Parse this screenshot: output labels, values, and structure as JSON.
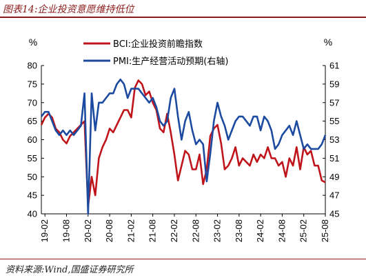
{
  "figure": {
    "title": "图表14:企业投资意愿维持低位",
    "source": "资料来源:Wind,国盛证券研究所"
  },
  "colors": {
    "bci": "#c0141b",
    "pmi": "#1b4aa0",
    "accent": "#8b1a1a"
  },
  "chart_data": {
    "type": "line",
    "left_unit": "%",
    "right_unit": "%",
    "left_axis": {
      "min": 40,
      "max": 80,
      "step": 5,
      "ticks": [
        "40",
        "45",
        "50",
        "55",
        "60",
        "65",
        "70",
        "75",
        "80"
      ]
    },
    "right_axis": {
      "min": 45,
      "max": 61,
      "step": 2,
      "ticks": [
        "45",
        "47",
        "49",
        "51",
        "53",
        "55",
        "57",
        "59",
        "61"
      ]
    },
    "x_ticks": [
      "19-02",
      "19-08",
      "20-02",
      "20-08",
      "21-02",
      "21-08",
      "22-02",
      "22-08",
      "23-02",
      "23-08",
      "24-02",
      "24-08",
      "25-02",
      "25-08"
    ],
    "x_range": [
      "2019-01",
      "2025-08"
    ],
    "grid": false,
    "legend_position": "top-center",
    "series": [
      {
        "name": "BCI:企业投资前瞻指数",
        "axis": "left",
        "color": "#c0141b",
        "points": [
          [
            "2019-01",
            64
          ],
          [
            "2019-02",
            66
          ],
          [
            "2019-03",
            67
          ],
          [
            "2019-04",
            66
          ],
          [
            "2019-05",
            63
          ],
          [
            "2019-06",
            62
          ],
          [
            "2019-07",
            60
          ],
          [
            "2019-08",
            59
          ],
          [
            "2019-09",
            61
          ],
          [
            "2019-10",
            62
          ],
          [
            "2019-11",
            63
          ],
          [
            "2019-12",
            64
          ],
          [
            "2020-01",
            65
          ],
          [
            "2020-02",
            42
          ],
          [
            "2020-03",
            50
          ],
          [
            "2020-04",
            45
          ],
          [
            "2020-05",
            55
          ],
          [
            "2020-06",
            58
          ],
          [
            "2020-07",
            60
          ],
          [
            "2020-08",
            63
          ],
          [
            "2020-09",
            62
          ],
          [
            "2020-10",
            64
          ],
          [
            "2020-11",
            66
          ],
          [
            "2020-12",
            68
          ],
          [
            "2021-01",
            68
          ],
          [
            "2021-02",
            66
          ],
          [
            "2021-03",
            74
          ],
          [
            "2021-04",
            76
          ],
          [
            "2021-05",
            75
          ],
          [
            "2021-06",
            72
          ],
          [
            "2021-07",
            73
          ],
          [
            "2021-08",
            70
          ],
          [
            "2021-09",
            68
          ],
          [
            "2021-10",
            63
          ],
          [
            "2021-11",
            62
          ],
          [
            "2021-12",
            67
          ],
          [
            "2022-01",
            62
          ],
          [
            "2022-02",
            56
          ],
          [
            "2022-03",
            49
          ],
          [
            "2022-04",
            53
          ],
          [
            "2022-05",
            57
          ],
          [
            "2022-06",
            56
          ],
          [
            "2022-07",
            52
          ],
          [
            "2022-08",
            52
          ],
          [
            "2022-09",
            56
          ],
          [
            "2022-10",
            48
          ],
          [
            "2022-11",
            52
          ],
          [
            "2022-12",
            61
          ],
          [
            "2023-01",
            63
          ],
          [
            "2023-02",
            64
          ],
          [
            "2023-03",
            59
          ],
          [
            "2023-04",
            52
          ],
          [
            "2023-05",
            53
          ],
          [
            "2023-06",
            55
          ],
          [
            "2023-07",
            58
          ],
          [
            "2023-08",
            53
          ],
          [
            "2023-09",
            55
          ],
          [
            "2023-10",
            54
          ],
          [
            "2023-11",
            53
          ],
          [
            "2023-12",
            56
          ],
          [
            "2024-01",
            54
          ],
          [
            "2024-02",
            56
          ],
          [
            "2024-03",
            55
          ],
          [
            "2024-04",
            58
          ],
          [
            "2024-05",
            55
          ],
          [
            "2024-06",
            55
          ],
          [
            "2024-07",
            53
          ],
          [
            "2024-08",
            54
          ],
          [
            "2024-09",
            50
          ],
          [
            "2024-10",
            55
          ],
          [
            "2024-11",
            53
          ],
          [
            "2024-12",
            58
          ],
          [
            "2025-01",
            52
          ],
          [
            "2025-02",
            58
          ],
          [
            "2025-03",
            56
          ],
          [
            "2025-04",
            57
          ],
          [
            "2025-05",
            53
          ],
          [
            "2025-06",
            53
          ],
          [
            "2025-07",
            49
          ],
          [
            "2025-08",
            48.5
          ]
        ]
      },
      {
        "name": "PMI:生产经营活动预期(右轴)",
        "axis": "right",
        "color": "#1b4aa0",
        "points": [
          [
            "2019-01",
            55.5
          ],
          [
            "2019-02",
            56
          ],
          [
            "2019-03",
            56
          ],
          [
            "2019-04",
            55
          ],
          [
            "2019-05",
            54
          ],
          [
            "2019-06",
            53.5
          ],
          [
            "2019-07",
            54
          ],
          [
            "2019-08",
            53.5
          ],
          [
            "2019-09",
            54
          ],
          [
            "2019-10",
            53.5
          ],
          [
            "2019-11",
            54
          ],
          [
            "2019-12",
            54.5
          ],
          [
            "2020-01",
            58
          ],
          [
            "2020-02",
            45
          ],
          [
            "2020-03",
            58
          ],
          [
            "2020-04",
            54
          ],
          [
            "2020-05",
            57
          ],
          [
            "2020-06",
            57
          ],
          [
            "2020-07",
            57.5
          ],
          [
            "2020-08",
            58
          ],
          [
            "2020-09",
            58
          ],
          [
            "2020-10",
            59
          ],
          [
            "2020-11",
            59.5
          ],
          [
            "2020-12",
            59
          ],
          [
            "2021-01",
            57.5
          ],
          [
            "2021-02",
            58.5
          ],
          [
            "2021-03",
            58.5
          ],
          [
            "2021-04",
            58.5
          ],
          [
            "2021-05",
            58
          ],
          [
            "2021-06",
            57.5
          ],
          [
            "2021-07",
            57
          ],
          [
            "2021-08",
            57.5
          ],
          [
            "2021-09",
            56.5
          ],
          [
            "2021-10",
            55
          ],
          [
            "2021-11",
            54.5
          ],
          [
            "2021-12",
            55
          ],
          [
            "2022-01",
            57.5
          ],
          [
            "2022-02",
            58.5
          ],
          [
            "2022-03",
            55.5
          ],
          [
            "2022-04",
            53
          ],
          [
            "2022-05",
            55
          ],
          [
            "2022-06",
            56
          ],
          [
            "2022-07",
            54
          ],
          [
            "2022-08",
            52.5
          ],
          [
            "2022-09",
            53
          ],
          [
            "2022-10",
            52.5
          ],
          [
            "2022-11",
            48.5
          ],
          [
            "2022-12",
            51.5
          ],
          [
            "2023-01",
            55
          ],
          [
            "2023-02",
            57
          ],
          [
            "2023-03",
            55.5
          ],
          [
            "2023-04",
            54.5
          ],
          [
            "2023-05",
            53
          ],
          [
            "2023-06",
            54
          ],
          [
            "2023-07",
            55
          ],
          [
            "2023-08",
            55.5
          ],
          [
            "2023-09",
            55.5
          ],
          [
            "2023-10",
            55
          ],
          [
            "2023-11",
            54.5
          ],
          [
            "2023-12",
            55.5
          ],
          [
            "2024-01",
            55.5
          ],
          [
            "2024-02",
            54
          ],
          [
            "2024-03",
            55.5
          ],
          [
            "2024-04",
            55
          ],
          [
            "2024-05",
            54
          ],
          [
            "2024-06",
            52
          ],
          [
            "2024-07",
            52.5
          ],
          [
            "2024-08",
            53.5
          ],
          [
            "2024-09",
            54
          ],
          [
            "2024-10",
            54.5
          ],
          [
            "2024-11",
            53.5
          ],
          [
            "2024-12",
            55
          ],
          [
            "2025-01",
            53.5
          ],
          [
            "2025-02",
            52
          ],
          [
            "2025-03",
            52.5
          ],
          [
            "2025-04",
            52
          ],
          [
            "2025-05",
            52
          ],
          [
            "2025-06",
            52
          ],
          [
            "2025-07",
            52.5
          ],
          [
            "2025-08",
            53.5
          ]
        ]
      }
    ]
  }
}
